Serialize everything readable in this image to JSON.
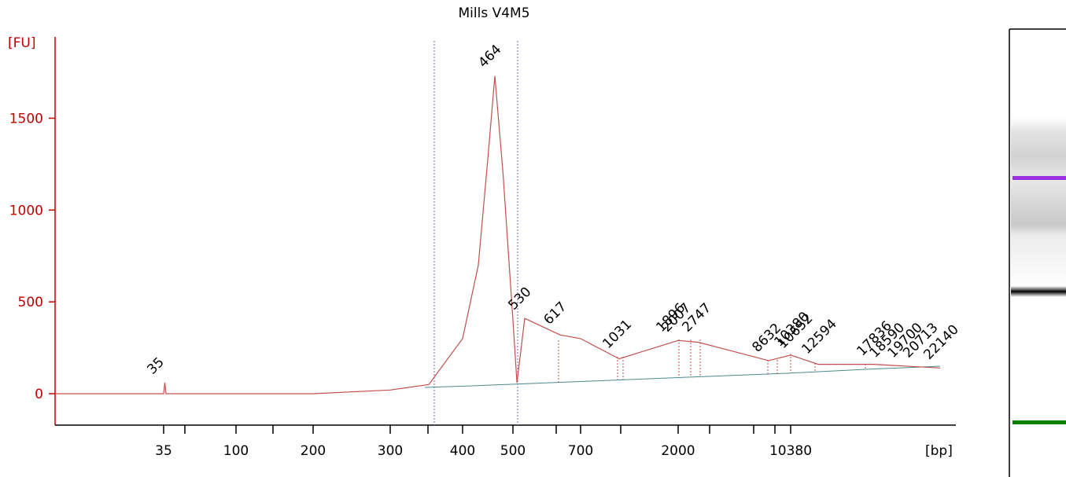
{
  "chart_data": {
    "type": "line",
    "title": "Mills V4M5",
    "ylabel": "[FU]",
    "xlabel": "[bp]",
    "ylim": [
      -170,
      1900
    ],
    "yticks": [
      0,
      500,
      1000,
      1500
    ],
    "xticks": [
      "35",
      "100",
      "200",
      "300",
      "400",
      "500",
      "700",
      "2000",
      "10380"
    ],
    "x_scale": "nonlinear (ladder calibrated)",
    "series": [
      {
        "color": "#c0504d",
        "points": [
          [
            "35",
            0
          ],
          [
            "35",
            60
          ],
          [
            "35",
            0
          ],
          [
            "100",
            0
          ],
          [
            "200",
            0
          ],
          [
            "300",
            20
          ],
          [
            "350",
            50
          ],
          [
            "400",
            300
          ],
          [
            "430",
            700
          ],
          [
            "450",
            1300
          ],
          [
            "464",
            1730
          ],
          [
            "480",
            1200
          ],
          [
            "500",
            400
          ],
          [
            "510",
            60
          ],
          [
            "530",
            410
          ],
          [
            "617",
            320
          ],
          [
            "700",
            300
          ],
          [
            "1031",
            190
          ],
          [
            "2000",
            290
          ],
          [
            "2747",
            280
          ],
          [
            "8632",
            180
          ],
          [
            "10380",
            210
          ],
          [
            "12594",
            160
          ],
          [
            "17836",
            160
          ],
          [
            "22140",
            140
          ]
        ]
      }
    ],
    "peak_labels": [
      {
        "text": "35",
        "x": "35",
        "y": 60,
        "color": "#008000"
      },
      {
        "text": "464",
        "x": "464",
        "y": 1730,
        "color": "#000000"
      },
      {
        "text": "530",
        "x": "530",
        "y": 410,
        "color": "#000000"
      },
      {
        "text": "617",
        "x": "617",
        "y": 330,
        "color": "#000000"
      },
      {
        "text": "1031",
        "x": "1031",
        "y": 200,
        "color": "#000000"
      },
      {
        "text": "1896",
        "x": "1896",
        "y": 290,
        "color": "#000000"
      },
      {
        "text": "2007",
        "x": "2007",
        "y": 290,
        "color": "#000000"
      },
      {
        "text": "2747",
        "x": "2747",
        "y": 290,
        "color": "#000000"
      },
      {
        "text": "8632",
        "x": "8632",
        "y": 180,
        "color": "#000000"
      },
      {
        "text": "10380",
        "x": "10380",
        "y": 210,
        "color": "#9a2fe0"
      },
      {
        "text": "10652",
        "x": "10652",
        "y": 200,
        "color": "#000000"
      },
      {
        "text": "12594",
        "x": "12594",
        "y": 170,
        "color": "#000000"
      },
      {
        "text": "17836",
        "x": "17836",
        "y": 160,
        "color": "#000000"
      },
      {
        "text": "18590",
        "x": "18590",
        "y": 150,
        "color": "#000000"
      },
      {
        "text": "19700",
        "x": "19700",
        "y": 150,
        "color": "#000000"
      },
      {
        "text": "20713",
        "x": "20713",
        "y": 150,
        "color": "#000000"
      },
      {
        "text": "22140",
        "x": "22140",
        "y": 140,
        "color": "#000000"
      }
    ],
    "grid": false
  },
  "gel": {
    "upper_marker_color": "#9a2fe0",
    "lower_marker_color": "#008000",
    "band_color": "#000000"
  }
}
